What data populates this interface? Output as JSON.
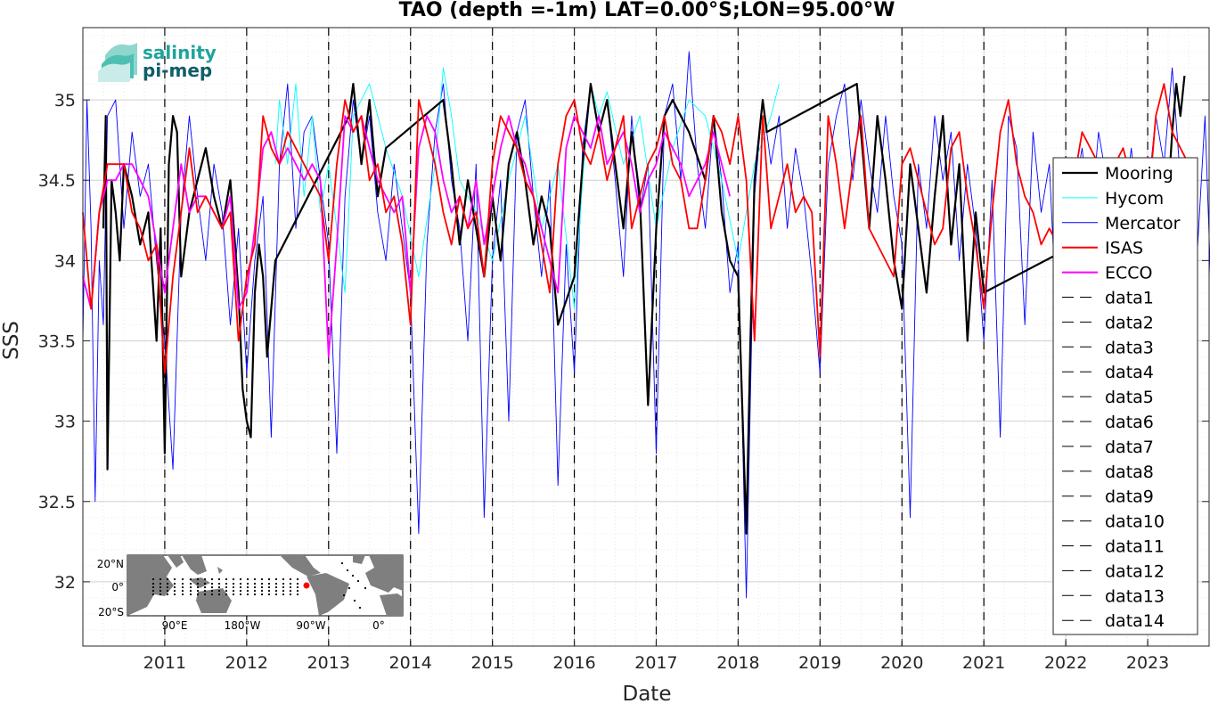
{
  "colors": {
    "mooring": "#000000",
    "hycom": "#00ffff",
    "mercator": "#0000ff",
    "isas": "#ff0000",
    "ecco": "#ff00ff",
    "grid": "#d9d9d9",
    "event_lines": "#000000"
  },
  "logo": {
    "line1": "salinity",
    "line2": "pi-mep"
  },
  "inset_map": {
    "lat_labels": [
      "20°N",
      "0°",
      "20°S"
    ],
    "lon_labels": [
      "90°E",
      "180°W",
      "90°W",
      "0°"
    ],
    "marker_color": "#ff0000"
  },
  "chart_data": {
    "type": "line",
    "title": "TAO (depth =-1m) LAT=0.00°S;LON=95.00°W",
    "xlabel": "Date",
    "ylabel": "SSS",
    "xlim": [
      "2010-01-01",
      "2023-10-01"
    ],
    "ylim": [
      31.6,
      35.45
    ],
    "grid": true,
    "legend_position": "right",
    "x_ticks": [
      "2011",
      "2012",
      "2013",
      "2014",
      "2015",
      "2016",
      "2017",
      "2018",
      "2019",
      "2020",
      "2021",
      "2022",
      "2023"
    ],
    "y_ticks": [
      32,
      32.5,
      33,
      33.5,
      34,
      34.5,
      35
    ],
    "y_tick_labels": [
      "32",
      "32.5",
      "33",
      "33.5",
      "34",
      "34.5",
      "35"
    ],
    "legend": [
      "Mooring",
      "Hycom",
      "Mercator",
      "ISAS",
      "ECCO",
      "data1",
      "data2",
      "data3",
      "data4",
      "data5",
      "data6",
      "data7",
      "data8",
      "data9",
      "data10",
      "data11",
      "data12",
      "data13",
      "data14"
    ],
    "dashed_lines_x": [
      "2011-01-01",
      "2012-01-01",
      "2013-01-01",
      "2014-01-01",
      "2015-01-01",
      "2016-01-01",
      "2017-01-01",
      "2018-01-01",
      "2019-01-01",
      "2020-01-01",
      "2021-01-01",
      "2022-01-01",
      "2023-01-01"
    ],
    "series": [
      {
        "name": "Mooring",
        "x": [
          2010.25,
          2010.28,
          2010.3,
          2010.35,
          2010.4,
          2010.45,
          2010.5,
          2010.6,
          2010.7,
          2010.8,
          2010.85,
          2010.9,
          2010.95,
          2011.0,
          2011.05,
          2011.1,
          2011.15,
          2011.2,
          2011.3,
          2011.4,
          2011.5,
          2011.6,
          2011.7,
          2011.8,
          2011.9,
          2011.95,
          2012.0,
          2012.05,
          2012.1,
          2012.15,
          2012.2,
          2012.25,
          2012.35,
          2013.25,
          2013.3,
          2013.4,
          2013.5,
          2013.6,
          2013.7,
          2014.4,
          2014.5,
          2014.6,
          2014.7,
          2014.8,
          2014.9,
          2015.0,
          2015.1,
          2015.2,
          2015.3,
          2015.4,
          2015.5,
          2015.6,
          2015.7,
          2015.8,
          2016.0,
          2016.1,
          2016.2,
          2016.3,
          2016.4,
          2016.5,
          2016.6,
          2016.7,
          2016.8,
          2016.9,
          2017.0,
          2017.1,
          2017.2,
          2017.4,
          2017.6,
          2017.7,
          2017.8,
          2017.9,
          2018.0,
          2018.1,
          2018.15,
          2018.2,
          2018.3,
          2018.35,
          2019.45,
          2019.5,
          2019.6,
          2019.7,
          2019.8,
          2019.9,
          2020.0,
          2020.1,
          2020.2,
          2020.3,
          2020.4,
          2020.5,
          2020.6,
          2020.7,
          2020.8,
          2020.9,
          2021.0,
          2023.25,
          2023.3,
          2023.35,
          2023.4,
          2023.45
        ],
        "y": [
          34.2,
          34.9,
          32.7,
          34.5,
          34.3,
          34.0,
          34.6,
          34.4,
          34.1,
          34.3,
          33.9,
          33.5,
          34.2,
          32.8,
          34.6,
          34.9,
          34.8,
          33.9,
          34.3,
          34.5,
          34.7,
          34.4,
          34.2,
          34.5,
          33.8,
          33.2,
          33.0,
          32.9,
          33.8,
          34.1,
          33.9,
          33.4,
          34.0,
          34.9,
          35.1,
          34.6,
          35.0,
          34.4,
          34.7,
          35.0,
          34.6,
          34.1,
          34.5,
          34.2,
          33.9,
          34.4,
          34.0,
          34.6,
          34.8,
          34.5,
          34.1,
          34.4,
          34.2,
          33.6,
          33.9,
          34.6,
          35.1,
          34.8,
          35.0,
          34.6,
          34.2,
          34.8,
          34.4,
          33.1,
          34.2,
          34.9,
          35.0,
          34.8,
          34.5,
          34.9,
          34.3,
          34.0,
          33.9,
          32.3,
          33.5,
          34.5,
          35.0,
          34.8,
          35.1,
          34.8,
          34.2,
          34.9,
          34.5,
          34.0,
          33.7,
          34.6,
          34.2,
          33.8,
          34.4,
          34.9,
          34.1,
          34.6,
          33.5,
          34.3,
          33.8,
          34.4,
          34.8,
          35.1,
          34.9,
          35.15
        ]
      },
      {
        "name": "Hycom",
        "x": [
          2012.35,
          2012.4,
          2012.5,
          2012.6,
          2012.7,
          2012.8,
          2012.9,
          2013.0,
          2013.1,
          2013.2,
          2013.3,
          2013.5,
          2013.7,
          2013.9,
          2014.1,
          2014.3,
          2014.4,
          2014.5,
          2014.6,
          2014.8,
          2015.0,
          2015.2,
          2015.4,
          2015.6,
          2015.8,
          2016.0,
          2016.1,
          2016.2,
          2016.3,
          2016.4,
          2016.6,
          2016.8,
          2017.0,
          2017.2,
          2017.4,
          2017.6,
          2017.8,
          2018.0,
          2018.2,
          2018.4,
          2018.5
        ],
        "y": [
          34.6,
          35.0,
          34.6,
          35.1,
          34.4,
          34.9,
          34.3,
          34.6,
          34.2,
          33.8,
          34.9,
          35.1,
          34.7,
          34.4,
          33.9,
          34.6,
          35.2,
          34.9,
          34.5,
          34.3,
          34.0,
          34.5,
          34.9,
          34.2,
          34.6,
          33.7,
          34.5,
          35.1,
          34.9,
          35.05,
          34.6,
          34.9,
          34.2,
          34.7,
          35.0,
          34.9,
          34.5,
          34.0,
          34.6,
          34.9,
          35.1
        ]
      },
      {
        "name": "Mercator",
        "x": [
          2010.0,
          2010.05,
          2010.1,
          2010.15,
          2010.2,
          2010.25,
          2010.3,
          2010.4,
          2010.5,
          2010.6,
          2010.7,
          2010.8,
          2010.9,
          2011.0,
          2011.1,
          2011.2,
          2011.3,
          2011.4,
          2011.5,
          2011.6,
          2011.7,
          2011.8,
          2011.9,
          2012.0,
          2012.1,
          2012.2,
          2012.3,
          2012.4,
          2012.5,
          2012.6,
          2012.7,
          2012.8,
          2012.9,
          2013.0,
          2013.1,
          2013.2,
          2013.3,
          2013.4,
          2013.5,
          2013.6,
          2013.7,
          2013.8,
          2013.9,
          2014.0,
          2014.1,
          2014.2,
          2014.3,
          2014.4,
          2014.5,
          2014.6,
          2014.7,
          2014.8,
          2014.9,
          2015.0,
          2015.1,
          2015.2,
          2015.3,
          2015.4,
          2015.5,
          2015.6,
          2015.7,
          2015.8,
          2015.9,
          2016.0,
          2016.1,
          2016.2,
          2016.3,
          2016.4,
          2016.5,
          2016.6,
          2016.7,
          2016.8,
          2016.9,
          2017.0,
          2017.1,
          2017.2,
          2017.3,
          2017.4,
          2017.5,
          2017.6,
          2017.7,
          2017.8,
          2017.9,
          2018.0,
          2018.1,
          2018.2,
          2018.3,
          2018.4,
          2018.5,
          2018.6,
          2018.7,
          2018.8,
          2018.9,
          2019.0,
          2019.1,
          2019.2,
          2019.3,
          2019.4,
          2019.5,
          2019.6,
          2019.7,
          2019.8,
          2019.9,
          2020.0,
          2020.1,
          2020.2,
          2020.3,
          2020.4,
          2020.5,
          2020.6,
          2020.7,
          2020.8,
          2020.9,
          2021.0,
          2021.1,
          2021.2,
          2021.3,
          2021.4,
          2021.5,
          2021.6,
          2021.7,
          2021.8,
          2021.9,
          2022.0,
          2022.1,
          2022.2,
          2022.3,
          2022.4,
          2022.5,
          2022.6,
          2022.7,
          2022.8,
          2022.9,
          2023.0,
          2023.1,
          2023.2,
          2023.3,
          2023.4,
          2023.5,
          2023.6,
          2023.7,
          2023.8
        ],
        "y": [
          33.5,
          35.0,
          34.2,
          32.5,
          34.0,
          33.6,
          34.9,
          35.0,
          34.2,
          34.8,
          34.4,
          34.6,
          34.0,
          33.5,
          32.7,
          34.3,
          34.9,
          34.4,
          34.0,
          34.6,
          34.3,
          33.6,
          34.2,
          33.3,
          34.0,
          34.4,
          32.9,
          34.6,
          35.1,
          34.2,
          34.8,
          34.9,
          34.5,
          34.1,
          32.8,
          34.4,
          35.0,
          34.6,
          34.9,
          34.3,
          34.0,
          34.6,
          34.2,
          33.8,
          32.3,
          34.1,
          34.8,
          35.1,
          34.5,
          34.2,
          33.5,
          34.6,
          32.4,
          34.0,
          34.5,
          33.0,
          34.8,
          35.0,
          34.4,
          33.9,
          34.5,
          32.6,
          34.1,
          33.3,
          34.7,
          35.1,
          34.8,
          35.0,
          34.5,
          33.9,
          34.9,
          34.3,
          34.6,
          32.8,
          34.9,
          35.1,
          34.5,
          35.3,
          34.6,
          34.2,
          34.9,
          34.5,
          33.8,
          34.1,
          31.9,
          34.4,
          35.0,
          34.6,
          34.9,
          34.2,
          34.7,
          34.4,
          33.9,
          33.3,
          34.6,
          34.9,
          35.1,
          34.5,
          35.0,
          34.6,
          34.3,
          34.9,
          34.4,
          34.1,
          32.4,
          34.6,
          34.2,
          34.9,
          34.5,
          34.8,
          34.0,
          34.6,
          34.2,
          33.5,
          34.5,
          32.9,
          34.9,
          34.7,
          33.6,
          34.8,
          34.3,
          34.6,
          33.5,
          34.1,
          34.4,
          34.7,
          34.2,
          34.8,
          34.5,
          34.6,
          34.3,
          34.7,
          34.2,
          34.4,
          34.9,
          34.6,
          35.2,
          34.5,
          34.2,
          34.0,
          34.9,
          33.4
        ]
      },
      {
        "name": "ISAS",
        "x": [
          2010.0,
          2010.1,
          2010.2,
          2010.3,
          2010.4,
          2010.5,
          2010.6,
          2010.7,
          2010.8,
          2010.9,
          2011.0,
          2011.1,
          2011.2,
          2011.3,
          2011.4,
          2011.5,
          2011.6,
          2011.7,
          2011.8,
          2011.9,
          2012.0,
          2012.1,
          2012.2,
          2012.3,
          2012.4,
          2012.5,
          2012.6,
          2012.7,
          2012.8,
          2012.9,
          2013.0,
          2013.1,
          2013.2,
          2013.3,
          2013.4,
          2013.5,
          2013.6,
          2013.7,
          2013.8,
          2013.9,
          2014.0,
          2014.1,
          2014.2,
          2014.3,
          2014.4,
          2014.5,
          2014.6,
          2014.7,
          2014.8,
          2014.9,
          2015.0,
          2015.1,
          2015.2,
          2015.3,
          2015.4,
          2015.5,
          2015.6,
          2015.7,
          2015.8,
          2015.9,
          2016.0,
          2016.1,
          2016.2,
          2016.3,
          2016.4,
          2016.5,
          2016.6,
          2016.7,
          2016.8,
          2016.9,
          2017.0,
          2017.1,
          2017.2,
          2017.3,
          2017.4,
          2017.5,
          2017.6,
          2017.7,
          2017.8,
          2017.9,
          2018.0,
          2018.1,
          2018.2,
          2018.3,
          2018.4,
          2018.5,
          2018.6,
          2018.7,
          2018.8,
          2018.9,
          2019.0,
          2019.1,
          2019.2,
          2019.3,
          2019.4,
          2019.5,
          2019.6,
          2019.7,
          2019.8,
          2019.9,
          2020.0,
          2020.1,
          2020.2,
          2020.3,
          2020.4,
          2020.5,
          2020.6,
          2020.7,
          2020.8,
          2020.9,
          2021.0,
          2021.1,
          2021.2,
          2021.3,
          2021.4,
          2021.5,
          2021.6,
          2021.7,
          2021.8,
          2021.9,
          2022.0,
          2022.1,
          2022.2,
          2022.3,
          2022.4,
          2022.5,
          2022.6,
          2022.7,
          2022.8,
          2022.9,
          2023.0,
          2023.1,
          2023.2,
          2023.3,
          2023.4,
          2023.5,
          2023.6
        ],
        "y": [
          34.3,
          33.7,
          34.3,
          34.6,
          34.6,
          34.6,
          34.3,
          34.2,
          34.0,
          34.1,
          33.3,
          33.9,
          34.3,
          34.7,
          34.3,
          34.4,
          34.3,
          34.2,
          34.3,
          33.5,
          33.9,
          34.1,
          34.9,
          34.7,
          34.6,
          34.8,
          34.7,
          34.6,
          34.5,
          34.4,
          34.0,
          34.6,
          35.0,
          34.8,
          34.9,
          34.5,
          34.6,
          34.3,
          34.4,
          34.1,
          33.6,
          35.0,
          34.8,
          34.6,
          34.3,
          34.1,
          34.4,
          34.2,
          34.3,
          33.9,
          34.6,
          34.9,
          34.8,
          34.7,
          34.5,
          34.4,
          34.1,
          33.8,
          34.6,
          34.9,
          35.0,
          34.7,
          34.6,
          34.8,
          34.5,
          34.7,
          34.9,
          34.2,
          34.4,
          34.6,
          34.7,
          34.9,
          34.6,
          34.5,
          34.2,
          34.2,
          34.5,
          34.9,
          34.8,
          34.6,
          34.9,
          34.5,
          33.5,
          34.9,
          34.2,
          34.4,
          34.6,
          34.3,
          34.4,
          34.3,
          33.4,
          34.9,
          34.6,
          34.2,
          34.6,
          34.9,
          34.2,
          34.1,
          34.0,
          33.9,
          34.6,
          34.7,
          34.5,
          34.3,
          34.1,
          34.2,
          34.7,
          34.8,
          34.4,
          34.1,
          33.7,
          34.3,
          34.8,
          35.0,
          34.6,
          34.4,
          34.3,
          34.1,
          34.2,
          34.1,
          34.2,
          34.5,
          34.8,
          34.7,
          34.6,
          34.3,
          34.6,
          34.7,
          34.5,
          34.4,
          34.3,
          34.9,
          35.1,
          34.8,
          34.7,
          34.6,
          34.5
        ]
      },
      {
        "name": "ECCO",
        "x": [
          2010.0,
          2010.1,
          2010.2,
          2010.3,
          2010.4,
          2010.5,
          2010.6,
          2010.7,
          2010.8,
          2010.9,
          2011.0,
          2011.1,
          2011.2,
          2011.3,
          2011.4,
          2011.5,
          2011.6,
          2011.7,
          2011.8,
          2011.9,
          2012.0,
          2012.1,
          2012.2,
          2012.3,
          2012.4,
          2012.5,
          2012.6,
          2012.7,
          2012.8,
          2012.9,
          2013.0,
          2013.1,
          2013.2,
          2013.3,
          2013.4,
          2013.5,
          2013.6,
          2013.7,
          2013.8,
          2013.9,
          2014.0,
          2014.1,
          2014.2,
          2014.3,
          2014.4,
          2014.5,
          2014.6,
          2014.7,
          2014.8,
          2014.9,
          2015.0,
          2015.1,
          2015.2,
          2015.3,
          2015.4,
          2015.5,
          2015.6,
          2015.7,
          2015.8,
          2015.9,
          2016.0,
          2016.1,
          2016.2,
          2016.3,
          2016.4,
          2016.5,
          2016.6,
          2016.7,
          2016.8,
          2016.9,
          2017.0,
          2017.1,
          2017.2,
          2017.3,
          2017.4,
          2017.5,
          2017.6,
          2017.7,
          2017.8,
          2017.9
        ],
        "y": [
          33.9,
          33.7,
          34.3,
          34.5,
          34.5,
          34.6,
          34.6,
          34.5,
          34.4,
          34.1,
          33.8,
          34.2,
          34.6,
          34.3,
          34.4,
          34.4,
          34.3,
          34.2,
          34.4,
          33.7,
          33.8,
          34.2,
          34.7,
          34.8,
          34.6,
          34.7,
          34.6,
          34.5,
          34.6,
          34.5,
          33.4,
          34.1,
          34.9,
          34.8,
          34.9,
          34.7,
          34.5,
          34.4,
          34.3,
          34.4,
          33.8,
          34.7,
          34.9,
          34.8,
          34.5,
          34.3,
          34.4,
          34.2,
          34.5,
          34.1,
          34.4,
          34.7,
          34.9,
          34.7,
          34.6,
          34.4,
          34.2,
          34.0,
          33.8,
          34.7,
          34.9,
          34.8,
          34.7,
          34.9,
          34.6,
          34.7,
          34.8,
          34.6,
          34.3,
          34.5,
          34.6,
          34.8,
          34.7,
          34.6,
          34.4,
          34.5,
          34.6,
          34.8,
          34.6,
          34.4
        ]
      }
    ]
  }
}
